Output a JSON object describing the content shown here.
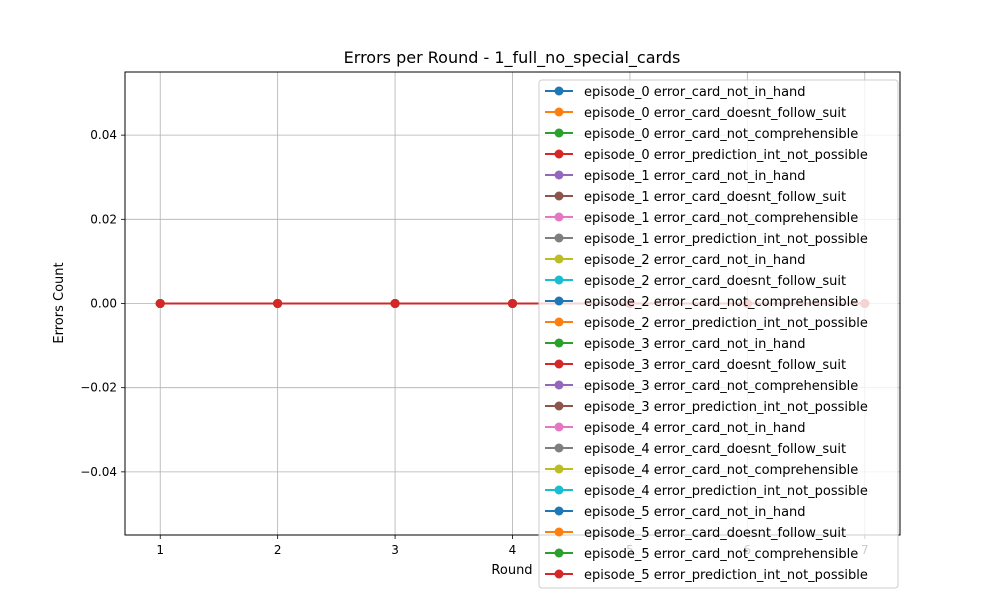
{
  "chart_data": {
    "type": "line",
    "title": "Errors per Round - 1_full_no_special_cards",
    "xlabel": "Round",
    "ylabel": "Errors Count",
    "x": [
      1,
      2,
      3,
      4,
      5,
      6,
      7
    ],
    "x_ticks": [
      1,
      2,
      3,
      4,
      5,
      6,
      7
    ],
    "x_tick_labels": [
      "1",
      "2",
      "3",
      "4",
      "5",
      "6",
      "7"
    ],
    "xlim": [
      0.7,
      7.3
    ],
    "y_ticks": [
      -0.04,
      -0.02,
      0.0,
      0.02,
      0.04
    ],
    "y_tick_labels": [
      "−0.04",
      "−0.02",
      "0.00",
      "0.02",
      "0.04"
    ],
    "ylim": [
      -0.055,
      0.055
    ],
    "grid": true,
    "legend_position": "top-right",
    "colors": [
      "#1f77b4",
      "#ff7f0e",
      "#2ca02c",
      "#d62728",
      "#9467bd",
      "#8c564b",
      "#e377c2",
      "#7f7f7f",
      "#bcbd22",
      "#17becf"
    ],
    "series": [
      {
        "name": "episode_0 error_card_not_in_hand",
        "values": [
          0,
          0,
          0,
          0,
          0,
          0,
          0
        ]
      },
      {
        "name": "episode_0 error_card_doesnt_follow_suit",
        "values": [
          0,
          0,
          0,
          0,
          0,
          0,
          0
        ]
      },
      {
        "name": "episode_0 error_card_not_comprehensible",
        "values": [
          0,
          0,
          0,
          0,
          0,
          0,
          0
        ]
      },
      {
        "name": "episode_0 error_prediction_int_not_possible",
        "values": [
          0,
          0,
          0,
          0,
          0,
          0,
          0
        ]
      },
      {
        "name": "episode_1 error_card_not_in_hand",
        "values": [
          0,
          0,
          0,
          0,
          0,
          0,
          0
        ]
      },
      {
        "name": "episode_1 error_card_doesnt_follow_suit",
        "values": [
          0,
          0,
          0,
          0,
          0,
          0,
          0
        ]
      },
      {
        "name": "episode_1 error_card_not_comprehensible",
        "values": [
          0,
          0,
          0,
          0,
          0,
          0,
          0
        ]
      },
      {
        "name": "episode_1 error_prediction_int_not_possible",
        "values": [
          0,
          0,
          0,
          0,
          0,
          0,
          0
        ]
      },
      {
        "name": "episode_2 error_card_not_in_hand",
        "values": [
          0,
          0,
          0,
          0,
          0,
          0,
          0
        ]
      },
      {
        "name": "episode_2 error_card_doesnt_follow_suit",
        "values": [
          0,
          0,
          0,
          0,
          0,
          0,
          0
        ]
      },
      {
        "name": "episode_2 error_card_not_comprehensible",
        "values": [
          0,
          0,
          0,
          0,
          0,
          0,
          0
        ]
      },
      {
        "name": "episode_2 error_prediction_int_not_possible",
        "values": [
          0,
          0,
          0,
          0,
          0,
          0,
          0
        ]
      },
      {
        "name": "episode_3 error_card_not_in_hand",
        "values": [
          0,
          0,
          0,
          0,
          0,
          0,
          0
        ]
      },
      {
        "name": "episode_3 error_card_doesnt_follow_suit",
        "values": [
          0,
          0,
          0,
          0,
          0,
          0,
          0
        ]
      },
      {
        "name": "episode_3 error_card_not_comprehensible",
        "values": [
          0,
          0,
          0,
          0,
          0,
          0,
          0
        ]
      },
      {
        "name": "episode_3 error_prediction_int_not_possible",
        "values": [
          0,
          0,
          0,
          0,
          0,
          0,
          0
        ]
      },
      {
        "name": "episode_4 error_card_not_in_hand",
        "values": [
          0,
          0,
          0,
          0,
          0,
          0,
          0
        ]
      },
      {
        "name": "episode_4 error_card_doesnt_follow_suit",
        "values": [
          0,
          0,
          0,
          0,
          0,
          0,
          0
        ]
      },
      {
        "name": "episode_4 error_card_not_comprehensible",
        "values": [
          0,
          0,
          0,
          0,
          0,
          0,
          0
        ]
      },
      {
        "name": "episode_4 error_prediction_int_not_possible",
        "values": [
          0,
          0,
          0,
          0,
          0,
          0,
          0
        ]
      },
      {
        "name": "episode_5 error_card_not_in_hand",
        "values": [
          0,
          0,
          0,
          0,
          0,
          0,
          0
        ]
      },
      {
        "name": "episode_5 error_card_doesnt_follow_suit",
        "values": [
          0,
          0,
          0,
          0,
          0,
          0,
          0
        ]
      },
      {
        "name": "episode_5 error_card_not_comprehensible",
        "values": [
          0,
          0,
          0,
          0,
          0,
          0,
          0
        ]
      },
      {
        "name": "episode_5 error_prediction_int_not_possible",
        "values": [
          0,
          0,
          0,
          0,
          0,
          0,
          0
        ]
      }
    ]
  }
}
